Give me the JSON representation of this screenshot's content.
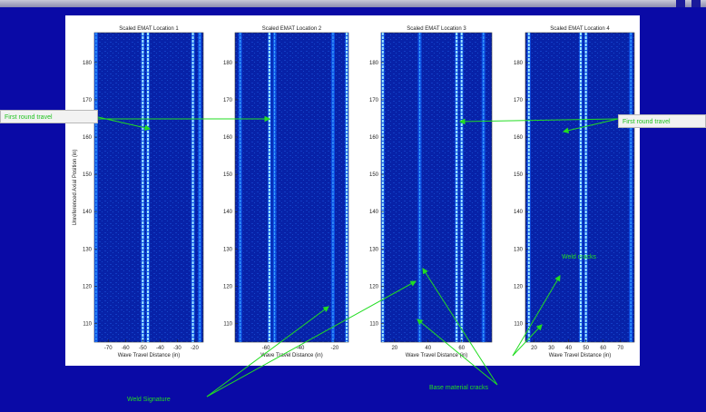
{
  "chart_data": [
    {
      "type": "heatmap",
      "title": "Scaled EMAT Location 1",
      "xlabel": "Wave Travel Distance (in)",
      "ylabel": "Unreferenced Axial Position (in)",
      "xlim": [
        -78,
        -15
      ],
      "ylim": [
        105,
        188
      ],
      "xticks": [
        -70,
        -60,
        -50,
        -40,
        -30,
        -20
      ],
      "yticks": [
        110,
        120,
        130,
        140,
        150,
        160,
        170,
        180
      ],
      "signal_lines": [
        {
          "x": -50,
          "intensity": "high"
        },
        {
          "x": -47,
          "intensity": "high"
        },
        {
          "x": -21,
          "intensity": "high"
        },
        {
          "x": -17,
          "intensity": "medium"
        },
        {
          "x": -77,
          "intensity": "medium"
        }
      ]
    },
    {
      "type": "heatmap",
      "title": "Scaled EMAT Location 2",
      "xlabel": "Wave Travel Distance (in)",
      "ylabel": "",
      "xlim": [
        -78,
        -12
      ],
      "ylim": [
        105,
        188
      ],
      "xticks": [
        -60,
        -40,
        -20
      ],
      "yticks": [
        110,
        120,
        130,
        140,
        150,
        160,
        170,
        180
      ],
      "signal_lines": [
        {
          "x": -75,
          "intensity": "medium"
        },
        {
          "x": -58,
          "intensity": "high"
        },
        {
          "x": -55,
          "intensity": "medium"
        },
        {
          "x": -21,
          "intensity": "medium"
        },
        {
          "x": -13,
          "intensity": "high"
        }
      ]
    },
    {
      "type": "heatmap",
      "title": "Scaled EMAT Location 3",
      "xlabel": "Wave Travel Distance (in)",
      "ylabel": "",
      "xlim": [
        12,
        78
      ],
      "ylim": [
        105,
        188
      ],
      "xticks": [
        20,
        40,
        60
      ],
      "yticks": [
        110,
        120,
        130,
        140,
        150,
        160,
        170,
        180
      ],
      "signal_lines": [
        {
          "x": 13,
          "intensity": "high"
        },
        {
          "x": 35,
          "intensity": "medium"
        },
        {
          "x": 57,
          "intensity": "high"
        },
        {
          "x": 60,
          "intensity": "high"
        },
        {
          "x": 73,
          "intensity": "medium"
        }
      ]
    },
    {
      "type": "heatmap",
      "title": "Scaled EMAT Location 4",
      "xlabel": "Wave Travel Distance (in)",
      "ylabel": "",
      "xlim": [
        15,
        78
      ],
      "ylim": [
        105,
        188
      ],
      "xticks": [
        20,
        30,
        40,
        50,
        60,
        70
      ],
      "yticks": [
        110,
        120,
        130,
        140,
        150,
        160,
        170,
        180
      ],
      "signal_lines": [
        {
          "x": 17,
          "intensity": "high"
        },
        {
          "x": 47,
          "intensity": "high"
        },
        {
          "x": 50,
          "intensity": "high"
        },
        {
          "x": 76,
          "intensity": "medium"
        }
      ]
    }
  ],
  "annotations": {
    "first_round_left": "First round travel",
    "first_round_right": "First round travel",
    "weld_cracks": "Weld cracks",
    "weld_signature": "Weld Signature",
    "base_cracks": "Base material cracks"
  },
  "colors": {
    "background": "#0a0aa6",
    "annotation": "#22dd22",
    "plot_bg": "#05208a"
  }
}
